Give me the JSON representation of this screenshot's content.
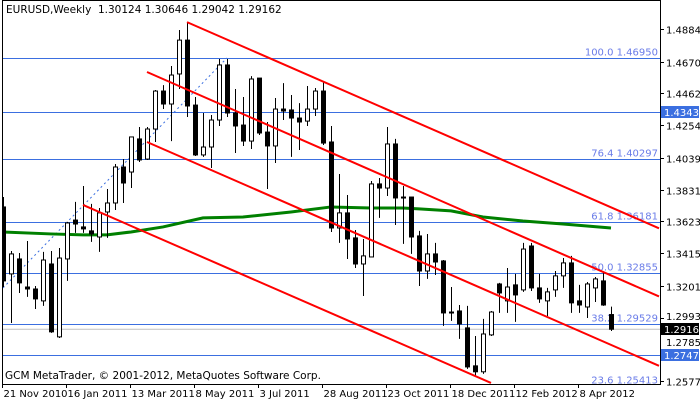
{
  "header": {
    "symbol_timeframe": "EURUSD,Weekly",
    "ohlc": "1.30124 1.30646 1.29042 1.29162"
  },
  "copyright": "GCM MetaTrader, © 2001-2012, MetaQuotes Software Corp.",
  "chart_data": {
    "type": "candlestick",
    "ylim": [
      1.2557,
      1.5075
    ],
    "grid": false,
    "candles": [
      [
        "2010-11-21",
        1.3718,
        1.3783,
        1.3193,
        1.3233
      ],
      [
        "2010-11-28",
        1.3279,
        1.3429,
        1.2957,
        1.341
      ],
      [
        "2010-12-05",
        1.3377,
        1.3416,
        1.3154,
        1.322
      ],
      [
        "2010-12-12",
        1.3193,
        1.3495,
        1.3128,
        1.318
      ],
      [
        "2010-12-19",
        1.318,
        1.32,
        1.3049,
        1.3115
      ],
      [
        "2010-12-26",
        1.3102,
        1.3423,
        1.3069,
        1.337
      ],
      [
        "2011-01-02",
        1.3344,
        1.3429,
        1.2892,
        1.2899
      ],
      [
        "2011-01-09",
        1.2866,
        1.3449,
        1.2859,
        1.3383
      ],
      [
        "2011-01-16",
        1.3377,
        1.362,
        1.3233,
        1.3613
      ],
      [
        "2011-01-23",
        1.3632,
        1.3751,
        1.3548,
        1.3606
      ],
      [
        "2011-01-30",
        1.3587,
        1.3855,
        1.3548,
        1.3574
      ],
      [
        "2011-02-06",
        1.3561,
        1.3738,
        1.3489,
        1.3541
      ],
      [
        "2011-02-13",
        1.3521,
        1.3711,
        1.3423,
        1.3679
      ],
      [
        "2011-02-20",
        1.3685,
        1.3836,
        1.3515,
        1.3744
      ],
      [
        "2011-02-27",
        1.3744,
        1.4,
        1.3698,
        1.398
      ],
      [
        "2011-03-06",
        1.398,
        1.4032,
        1.3744,
        1.3875
      ],
      [
        "2011-03-13",
        1.3947,
        1.4177,
        1.3842,
        1.4177
      ],
      [
        "2011-03-20",
        1.4164,
        1.4242,
        1.4013,
        1.4026
      ],
      [
        "2011-03-27",
        1.4032,
        1.4242,
        1.4026,
        1.4229
      ],
      [
        "2011-04-03",
        1.4229,
        1.4485,
        1.4144,
        1.4478
      ],
      [
        "2011-04-10",
        1.4478,
        1.4517,
        1.436,
        1.4393
      ],
      [
        "2011-04-17",
        1.4393,
        1.4642,
        1.415,
        1.4583
      ],
      [
        "2011-04-24",
        1.459,
        1.4878,
        1.4491,
        1.4812
      ],
      [
        "2011-05-01",
        1.4812,
        1.493,
        1.4308,
        1.438
      ],
      [
        "2011-05-08",
        1.4386,
        1.4439,
        1.4052,
        1.4059
      ],
      [
        "2011-05-15",
        1.4059,
        1.4334,
        1.4046,
        1.4111
      ],
      [
        "2011-05-22",
        1.4111,
        1.4321,
        1.3973,
        1.4288
      ],
      [
        "2011-05-29",
        1.4288,
        1.4688,
        1.4249,
        1.4649
      ],
      [
        "2011-06-05",
        1.4649,
        1.4688,
        1.4308,
        1.4334
      ],
      [
        "2011-06-12",
        1.4334,
        1.4491,
        1.4072,
        1.4249
      ],
      [
        "2011-06-19",
        1.4255,
        1.4439,
        1.4118,
        1.415
      ],
      [
        "2011-06-26",
        1.415,
        1.4576,
        1.4098,
        1.4557
      ],
      [
        "2011-07-03",
        1.4563,
        1.4563,
        1.419,
        1.4203
      ],
      [
        "2011-07-10",
        1.4209,
        1.4275,
        1.3836,
        1.4118
      ],
      [
        "2011-07-17",
        1.4118,
        1.4432,
        1.4006,
        1.436
      ],
      [
        "2011-07-24",
        1.436,
        1.453,
        1.4288,
        1.4347
      ],
      [
        "2011-07-31",
        1.4354,
        1.4452,
        1.4046,
        1.4301
      ],
      [
        "2011-08-07",
        1.4301,
        1.4399,
        1.4091,
        1.4275
      ],
      [
        "2011-08-14",
        1.4281,
        1.4511,
        1.4249,
        1.436
      ],
      [
        "2011-08-21",
        1.436,
        1.4498,
        1.4314,
        1.4478
      ],
      [
        "2011-08-28",
        1.4478,
        1.4537,
        1.4124,
        1.4137
      ],
      [
        "2011-09-04",
        1.4144,
        1.4249,
        1.3554,
        1.358
      ],
      [
        "2011-09-11",
        1.358,
        1.3934,
        1.3482,
        1.3679
      ],
      [
        "2011-09-18",
        1.3679,
        1.3796,
        1.3377,
        1.3508
      ],
      [
        "2011-09-25",
        1.3515,
        1.3567,
        1.3318,
        1.3344
      ],
      [
        "2011-10-02",
        1.3344,
        1.3508,
        1.3134,
        1.3397
      ],
      [
        "2011-10-09",
        1.339,
        1.3888,
        1.339,
        1.3869
      ],
      [
        "2011-10-16",
        1.3869,
        1.3908,
        1.3646,
        1.3842
      ],
      [
        "2011-10-23",
        1.3842,
        1.4242,
        1.379,
        1.4131
      ],
      [
        "2011-10-30",
        1.4131,
        1.4164,
        1.36,
        1.3777
      ],
      [
        "2011-11-06",
        1.3783,
        1.3855,
        1.3476,
        1.3777
      ],
      [
        "2011-11-13",
        1.3783,
        1.3783,
        1.341,
        1.3521
      ],
      [
        "2011-11-20",
        1.3528,
        1.3561,
        1.32,
        1.3298
      ],
      [
        "2011-11-27",
        1.3298,
        1.3541,
        1.3246,
        1.341
      ],
      [
        "2011-12-04",
        1.341,
        1.3482,
        1.3272,
        1.3357
      ],
      [
        "2011-12-11",
        1.3364,
        1.337,
        1.2938,
        1.3023
      ],
      [
        "2011-12-18",
        1.3029,
        1.3193,
        1.2971,
        1.3026
      ],
      [
        "2011-12-25",
        1.3036,
        1.3075,
        1.2853,
        1.2951
      ],
      [
        "2012-01-01",
        1.2925,
        1.3069,
        1.2656,
        1.2669
      ],
      [
        "2012-01-08",
        1.2676,
        1.2872,
        1.261,
        1.2637
      ],
      [
        "2012-01-15",
        1.2637,
        1.2984,
        1.2623,
        1.2885
      ],
      [
        "2012-01-22",
        1.2879,
        1.3036,
        1.2872,
        1.3029
      ],
      [
        "2012-01-29",
        1.3213,
        1.322,
        1.3023,
        1.3154
      ],
      [
        "2012-02-05",
        1.3102,
        1.3318,
        1.3023,
        1.3193
      ],
      [
        "2012-02-12",
        1.3207,
        1.3279,
        1.2964,
        1.3141
      ],
      [
        "2012-02-19",
        1.3174,
        1.3482,
        1.3161,
        1.3442
      ],
      [
        "2012-02-26",
        1.3462,
        1.3482,
        1.3167,
        1.3187
      ],
      [
        "2012-03-04",
        1.3187,
        1.3279,
        1.3089,
        1.3115
      ],
      [
        "2012-03-11",
        1.3102,
        1.3187,
        1.3003,
        1.3161
      ],
      [
        "2012-03-18",
        1.3174,
        1.3298,
        1.3128,
        1.3266
      ],
      [
        "2012-03-25",
        1.3266,
        1.3383,
        1.3187,
        1.3351
      ],
      [
        "2012-04-01",
        1.3351,
        1.3397,
        1.3023,
        1.3089
      ],
      [
        "2012-04-08",
        1.3102,
        1.3207,
        1.3023,
        1.3075
      ],
      [
        "2012-04-15",
        1.3062,
        1.3226,
        1.299,
        1.3213
      ],
      [
        "2012-04-22",
        1.3187,
        1.3259,
        1.3095,
        1.3246
      ],
      [
        "2012-04-29",
        1.3233,
        1.3285,
        1.3069,
        1.3075
      ],
      [
        "2012-05-06",
        1.30124,
        1.30646,
        1.29042,
        1.29162
      ]
    ],
    "moving_average": [
      [
        "2010-11-21",
        1.3554
      ],
      [
        "2011-01-02",
        1.3541
      ],
      [
        "2011-01-30",
        1.3535
      ],
      [
        "2011-02-20",
        1.3535
      ],
      [
        "2011-03-13",
        1.3554
      ],
      [
        "2011-04-10",
        1.3587
      ],
      [
        "2011-05-15",
        1.3646
      ],
      [
        "2011-06-19",
        1.3652
      ],
      [
        "2011-07-31",
        1.3685
      ],
      [
        "2011-09-04",
        1.3718
      ],
      [
        "2011-10-09",
        1.3711
      ],
      [
        "2011-11-06",
        1.3711
      ],
      [
        "2011-11-20",
        1.3705
      ],
      [
        "2011-12-18",
        1.3692
      ],
      [
        "2012-01-15",
        1.3652
      ],
      [
        "2012-02-19",
        1.3626
      ],
      [
        "2012-03-25",
        1.3606
      ],
      [
        "2012-05-06",
        1.358
      ]
    ],
    "trendlines": [
      {
        "from": [
          "2011-05-01",
          1.493
        ],
        "to": [
          "2012-06-17",
          1.3578
        ]
      },
      {
        "from": [
          "2011-03-27",
          1.4603
        ],
        "to": [
          "2012-06-17",
          1.3131
        ]
      },
      {
        "from": [
          "2011-03-27",
          1.4144
        ],
        "to": [
          "2012-06-17",
          1.2676
        ]
      },
      {
        "from": [
          "2011-01-30",
          1.3731
        ],
        "to": [
          "2012-01-22",
          1.2564
        ]
      }
    ],
    "fib_trend": {
      "from": [
        "2010-11-21",
        1.3187
      ],
      "to": [
        "2011-06-05",
        1.4695
      ]
    },
    "fib_levels": [
      {
        "level": "100.0",
        "price": "1.46950"
      },
      {
        "level": "76.4",
        "price": "1.40297"
      },
      {
        "level": "61.8",
        "price": "1.36181"
      },
      {
        "level": "50.0",
        "price": "1.32855"
      },
      {
        "level": "38.2",
        "price": "1.29529"
      },
      {
        "level": "23.6",
        "price": "1.25413"
      }
    ],
    "horizontal_lines": [
      "1.43437",
      "1.27479"
    ],
    "bid": "1.29162",
    "y_ticks": [
      "1.48845",
      "1.46700",
      "1.44620",
      "1.42540",
      "1.40395",
      "1.38315",
      "1.36235",
      "1.34155",
      "1.32010",
      "1.29930",
      "1.27850",
      "1.25770"
    ],
    "x_ticks": [
      {
        "label": "21 Nov 2010",
        "date": "2010-11-21"
      },
      {
        "label": "16 Jan 2011",
        "date": "2011-01-16"
      },
      {
        "label": "13 Mar 2011",
        "date": "2011-03-13"
      },
      {
        "label": "8 May 2011",
        "date": "2011-05-08"
      },
      {
        "label": "3 Jul 2011",
        "date": "2011-07-03"
      },
      {
        "label": "28 Aug 2011",
        "date": "2011-08-28"
      },
      {
        "label": "23 Oct 2011",
        "date": "2011-10-23"
      },
      {
        "label": "18 Dec 2011",
        "date": "2011-12-18"
      },
      {
        "label": "12 Feb 2012",
        "date": "2012-02-12"
      },
      {
        "label": "8 Apr 2012",
        "date": "2012-04-08"
      }
    ],
    "colors": {
      "trendline": "#ff0000",
      "moving_average": "#008000",
      "fib_line": "#3b6fe0",
      "fib_text": "#6a7ce8",
      "highlight_label": "#3b6fe0",
      "bid_line": "#c0c0c0",
      "bid_label": "#000000"
    }
  }
}
